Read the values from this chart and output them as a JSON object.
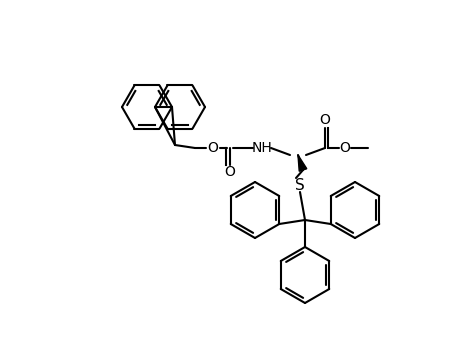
{
  "bg_color": "#ffffff",
  "line_color": "black",
  "lw": 1.5,
  "figsize": [
    4.52,
    3.64
  ],
  "dpi": 100,
  "atoms": {
    "S_label": "S",
    "O1_label": "O",
    "O2_label": "O",
    "NH_label": "NH",
    "O3_label": "O",
    "O4_label": "O"
  }
}
